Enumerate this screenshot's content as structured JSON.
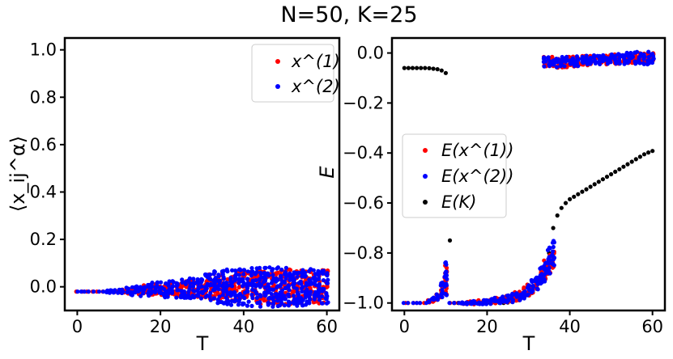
{
  "title": "N=50, K=25",
  "colors": {
    "series1": "#ff0000",
    "series2": "#0000ff",
    "seriesK": "#000000",
    "axes": "#000000",
    "background": "#ffffff"
  },
  "chart_data": [
    {
      "type": "scatter",
      "xlabel": "T",
      "ylabel": "⟨x_ij^α⟩",
      "xlim": [
        -3,
        63
      ],
      "ylim": [
        -0.1,
        1.05
      ],
      "xticks": [
        0,
        20,
        40,
        60
      ],
      "yticks": [
        0.0,
        0.2,
        0.4,
        0.6,
        0.8,
        1.0
      ],
      "xtick_labels": [
        "0",
        "20",
        "40",
        "60"
      ],
      "ytick_labels": [
        "0.0",
        "0.2",
        "0.4",
        "0.6",
        "0.8",
        "1.0"
      ],
      "legend": {
        "placement": "top-right",
        "entries": [
          "x^(1)",
          "x^(2)"
        ]
      },
      "series": [
        {
          "name": "x^(1)",
          "color": "#ff0000",
          "description": "per-T spread of ⟨x_ij⟩ values",
          "T": [
            0,
            5,
            10,
            15,
            20,
            25,
            30,
            35,
            40,
            45,
            50,
            55,
            60
          ],
          "center": [
            -0.02,
            -0.02,
            -0.02,
            -0.015,
            -0.01,
            -0.01,
            0.0,
            0.0,
            0.0,
            0.0,
            0.0,
            0.0,
            0.0
          ],
          "spread": [
            0.0,
            0.0,
            0.005,
            0.02,
            0.025,
            0.03,
            0.045,
            0.065,
            0.07,
            0.075,
            0.075,
            0.07,
            0.07
          ]
        },
        {
          "name": "x^(2)",
          "color": "#0000ff",
          "description": "per-T spread of ⟨x_ij⟩ values",
          "T": [
            0,
            5,
            10,
            15,
            20,
            25,
            30,
            35,
            40,
            45,
            50,
            55,
            60
          ],
          "center": [
            -0.02,
            -0.02,
            -0.02,
            -0.015,
            -0.01,
            -0.01,
            0.0,
            0.0,
            0.0,
            0.0,
            0.0,
            0.0,
            0.0
          ],
          "spread": [
            0.0,
            0.0,
            0.01,
            0.025,
            0.035,
            0.04,
            0.05,
            0.075,
            0.08,
            0.085,
            0.085,
            0.08,
            0.075
          ]
        }
      ]
    },
    {
      "type": "scatter",
      "xlabel": "T",
      "ylabel": "E",
      "xlim": [
        -3,
        63
      ],
      "ylim": [
        -1.03,
        0.06
      ],
      "xticks": [
        0,
        20,
        40,
        60
      ],
      "yticks": [
        -1.0,
        -0.8,
        -0.6,
        -0.4,
        -0.2,
        0.0
      ],
      "xtick_labels": [
        "0",
        "20",
        "40",
        "60"
      ],
      "ytick_labels": [
        "−1.0",
        "−0.8",
        "−0.6",
        "−0.4",
        "−0.2",
        "0.0"
      ],
      "legend": {
        "placement": "center-left",
        "entries": [
          "E(x^(1))",
          "E(x^(2))",
          "E(K)"
        ]
      },
      "series": [
        {
          "name": "E(K)",
          "color": "#000000",
          "T": [
            0,
            1,
            2,
            3,
            4,
            5,
            6,
            7,
            8,
            9,
            10,
            11,
            12,
            13,
            14,
            15,
            16,
            17,
            18,
            19,
            20,
            21,
            22,
            23,
            24,
            25,
            26,
            27,
            28,
            29,
            30,
            31,
            32,
            33,
            34,
            35,
            36,
            37,
            38,
            39,
            40,
            41,
            42,
            43,
            44,
            45,
            46,
            47,
            48,
            49,
            50,
            51,
            52,
            53,
            54,
            55,
            56,
            57,
            58,
            59,
            60
          ],
          "E": [
            -0.06,
            -0.06,
            -0.06,
            -0.06,
            -0.06,
            -0.06,
            -0.061,
            -0.063,
            -0.065,
            -0.07,
            -0.08,
            -0.75,
            -1.0,
            -1.0,
            -1.0,
            -1.0,
            -1.0,
            -1.0,
            -1.0,
            -1.0,
            -1.0,
            -1.0,
            -1.0,
            -1.0,
            -1.0,
            -0.998,
            -0.995,
            -0.99,
            -0.985,
            -0.975,
            -0.96,
            -0.945,
            -0.925,
            -0.9,
            -0.86,
            -0.8,
            -0.7,
            -0.65,
            -0.62,
            -0.6,
            -0.585,
            -0.575,
            -0.565,
            -0.555,
            -0.545,
            -0.535,
            -0.525,
            -0.515,
            -0.505,
            -0.495,
            -0.485,
            -0.475,
            -0.465,
            -0.455,
            -0.445,
            -0.435,
            -0.425,
            -0.415,
            -0.405,
            -0.398,
            -0.392
          ]
        },
        {
          "name": "E(x^(1))",
          "color": "#ff0000",
          "description": "per-T band of energies (center ± spread)",
          "T": [
            0,
            5,
            8,
            9,
            10,
            11,
            15,
            20,
            25,
            28,
            30,
            32,
            34,
            35,
            36,
            37,
            40,
            45,
            50,
            55,
            60
          ],
          "center": [
            -1.0,
            -1.0,
            -0.98,
            -0.95,
            -0.91,
            -1.0,
            -1.0,
            -0.995,
            -0.985,
            -0.97,
            -0.95,
            -0.92,
            -0.87,
            -0.84,
            -0.82,
            -0.04,
            -0.035,
            -0.03,
            -0.025,
            -0.02,
            -0.02
          ],
          "spread": [
            0.0,
            0.0,
            0.015,
            0.03,
            0.06,
            0.0,
            0.005,
            0.01,
            0.015,
            0.02,
            0.025,
            0.03,
            0.04,
            0.05,
            0.04,
            0.02,
            0.02,
            0.02,
            0.02,
            0.02,
            0.02
          ]
        },
        {
          "name": "E(x^(2))",
          "color": "#0000ff",
          "description": "per-T band of energies (center ± spread)",
          "T": [
            0,
            5,
            8,
            9,
            10,
            11,
            15,
            20,
            25,
            28,
            30,
            32,
            34,
            35,
            36,
            37,
            40,
            45,
            50,
            55,
            60
          ],
          "center": [
            -1.0,
            -1.0,
            -0.98,
            -0.95,
            -0.9,
            -1.0,
            -1.0,
            -0.995,
            -0.985,
            -0.97,
            -0.95,
            -0.92,
            -0.87,
            -0.83,
            -0.8,
            -0.04,
            -0.035,
            -0.03,
            -0.025,
            -0.02,
            -0.02
          ],
          "spread": [
            0.0,
            0.0,
            0.015,
            0.035,
            0.07,
            0.0,
            0.005,
            0.01,
            0.015,
            0.02,
            0.025,
            0.03,
            0.045,
            0.055,
            0.05,
            0.025,
            0.02,
            0.02,
            0.02,
            0.025,
            0.025
          ]
        }
      ]
    }
  ]
}
